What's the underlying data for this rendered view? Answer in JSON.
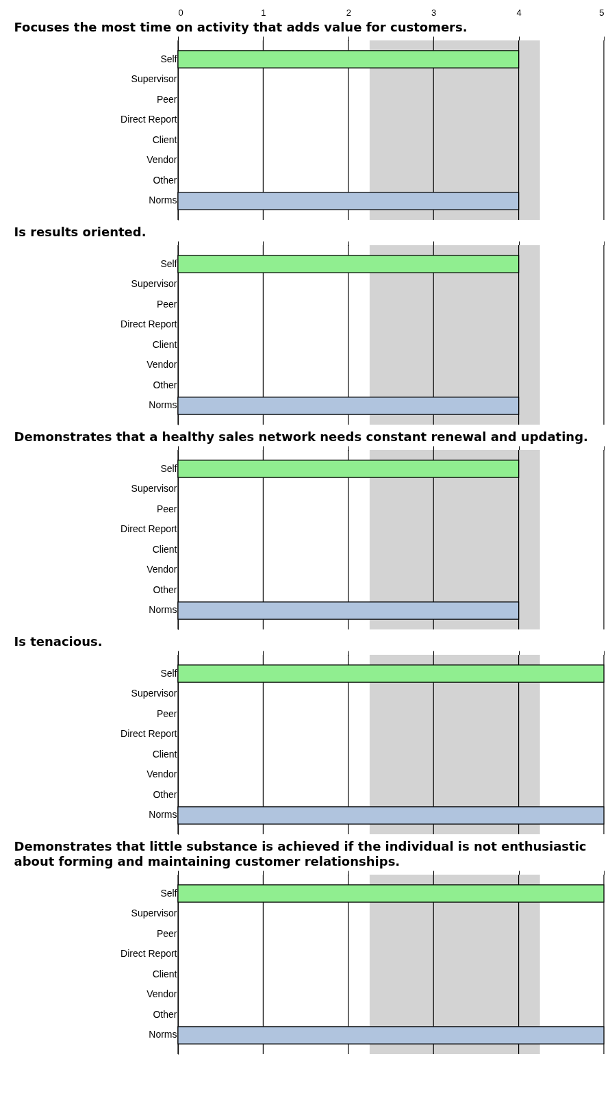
{
  "chart_data": [
    {
      "type": "bar",
      "orientation": "horizontal",
      "title": "Focuses the most time on activity that adds value for customers.",
      "categories": [
        "Self",
        "Supervisor",
        "Peer",
        "Direct Report",
        "Client",
        "Vendor",
        "Other",
        "Norms"
      ],
      "series": [
        {
          "color": "#90ee90",
          "values": [
            4,
            null,
            null,
            null,
            null,
            null,
            null,
            null
          ]
        },
        {
          "color": "#b0c4de",
          "values": [
            null,
            null,
            null,
            null,
            null,
            null,
            null,
            4
          ]
        }
      ],
      "xlim": [
        0,
        5
      ],
      "xticks": [
        0,
        1,
        2,
        3,
        4,
        5
      ],
      "grid": "x",
      "bands": [
        {
          "axis": "x",
          "from": 2.25,
          "to": 4.25,
          "color": "#d3d3d3"
        }
      ]
    },
    {
      "type": "bar",
      "orientation": "horizontal",
      "title": "Is results oriented.",
      "categories": [
        "Self",
        "Supervisor",
        "Peer",
        "Direct Report",
        "Client",
        "Vendor",
        "Other",
        "Norms"
      ],
      "series": [
        {
          "color": "#90ee90",
          "values": [
            4,
            null,
            null,
            null,
            null,
            null,
            null,
            null
          ]
        },
        {
          "color": "#b0c4de",
          "values": [
            null,
            null,
            null,
            null,
            null,
            null,
            null,
            4
          ]
        }
      ],
      "xlim": [
        0,
        5
      ],
      "xticks": [
        0,
        1,
        2,
        3,
        4,
        5
      ],
      "tick_labels": "y",
      "grid": "x",
      "bands": [
        {
          "axis": "x",
          "from": 2.25,
          "to": 4.25,
          "color": "#d3d3d3"
        }
      ]
    },
    {
      "type": "bar",
      "orientation": "horizontal",
      "title": "Demonstrates that a healthy sales network needs constant renewal and updating.",
      "categories": [
        "Self",
        "Supervisor",
        "Peer",
        "Direct Report",
        "Client",
        "Vendor",
        "Other",
        "Norms"
      ],
      "series": [
        {
          "color": "#90ee90",
          "values": [
            4,
            null,
            null,
            null,
            null,
            null,
            null,
            null
          ]
        },
        {
          "color": "#b0c4de",
          "values": [
            null,
            null,
            null,
            null,
            null,
            null,
            null,
            4
          ]
        }
      ],
      "xlim": [
        0,
        5
      ],
      "xticks": [
        0,
        1,
        2,
        3,
        4,
        5
      ],
      "tick_labels": "y",
      "grid": "x",
      "bands": [
        {
          "axis": "x",
          "from": 2.25,
          "to": 4.25,
          "color": "#d3d3d3"
        }
      ]
    },
    {
      "type": "bar",
      "orientation": "horizontal",
      "title": "Is tenacious.",
      "categories": [
        "Self",
        "Supervisor",
        "Peer",
        "Direct Report",
        "Client",
        "Vendor",
        "Other",
        "Norms"
      ],
      "series": [
        {
          "color": "#90ee90",
          "values": [
            5,
            null,
            null,
            null,
            null,
            null,
            null,
            null
          ]
        },
        {
          "color": "#b0c4de",
          "values": [
            null,
            null,
            null,
            null,
            null,
            null,
            null,
            5
          ]
        }
      ],
      "xlim": [
        0,
        5
      ],
      "xticks": [
        0,
        1,
        2,
        3,
        4,
        5
      ],
      "tick_labels": "y",
      "grid": "x",
      "bands": [
        {
          "axis": "x",
          "from": 2.25,
          "to": 4.25,
          "color": "#d3d3d3"
        }
      ]
    },
    {
      "type": "bar",
      "orientation": "horizontal",
      "title": "Demonstrates that little substance is achieved if the individual is not enthusiastic about forming and maintaining customer relationships.",
      "categories": [
        "Self",
        "Supervisor",
        "Peer",
        "Direct Report",
        "Client",
        "Vendor",
        "Other",
        "Norms"
      ],
      "series": [
        {
          "color": "#90ee90",
          "values": [
            5,
            null,
            null,
            null,
            null,
            null,
            null,
            null
          ]
        },
        {
          "color": "#b0c4de",
          "values": [
            null,
            null,
            null,
            null,
            null,
            null,
            null,
            5
          ]
        }
      ],
      "xlim": [
        0,
        5
      ],
      "xticks": [
        0,
        1,
        2,
        3,
        4,
        5
      ],
      "tick_labels": "y",
      "grid": "x",
      "bands": [
        {
          "axis": "x",
          "from": 2.25,
          "to": 4.25,
          "color": "#d3d3d3"
        }
      ]
    }
  ]
}
